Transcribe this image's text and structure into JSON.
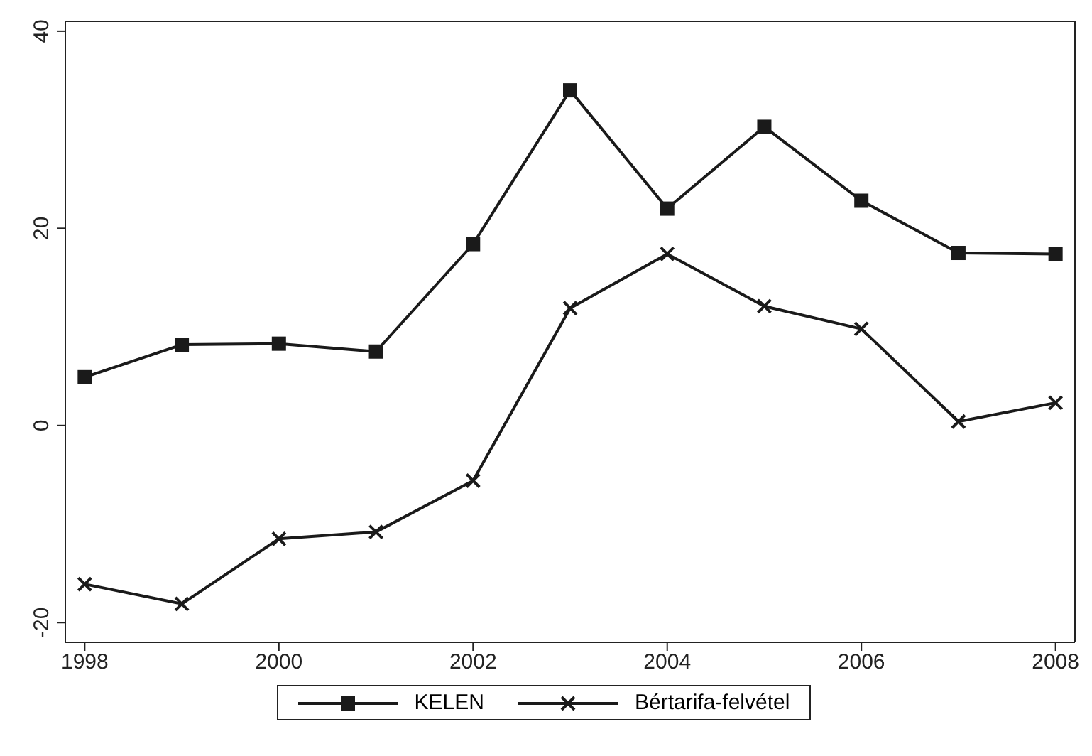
{
  "chart_data": {
    "type": "line",
    "x": [
      1998,
      1999,
      2000,
      2001,
      2002,
      2003,
      2004,
      2005,
      2006,
      2007,
      2008
    ],
    "series": [
      {
        "name": "KELEN",
        "color": "#1a1a1a",
        "marker": "square",
        "values": [
          4.9,
          8.2,
          8.3,
          7.5,
          18.4,
          34,
          22,
          30.3,
          22.8,
          17.5,
          17.4
        ]
      },
      {
        "name": "Bértarifa-felvétel",
        "color": "#1a1a1a",
        "marker": "cross",
        "values": [
          -16.1,
          -18.1,
          -11.5,
          -10.8,
          -5.6,
          11.9,
          17.4,
          12.1,
          9.8,
          0.4,
          2.3
        ]
      }
    ],
    "xlim": [
      1997.8,
      2008.2
    ],
    "xticks": [
      1998,
      2000,
      2002,
      2004,
      2006,
      2008
    ],
    "ylim": [
      -22,
      41
    ],
    "yticks": [
      -20,
      0,
      20,
      40
    ],
    "grid": false,
    "legend": "bottom",
    "line_style": "solid"
  }
}
